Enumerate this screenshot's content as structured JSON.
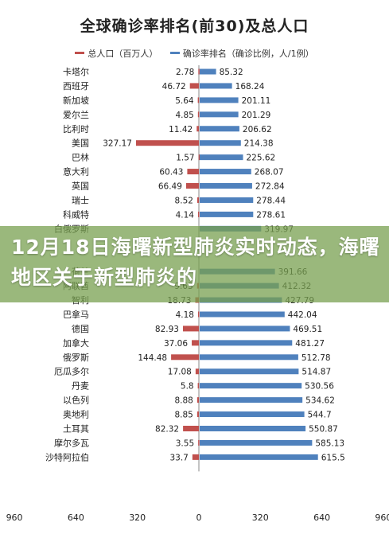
{
  "chart_data": {
    "type": "bar",
    "title": "全球确诊率排名(前30)及总人口",
    "categories": [
      "卡塔尔",
      "西班牙",
      "新加坡",
      "爱尔兰",
      "比利时",
      "美国",
      "巴林",
      "意大利",
      "英国",
      "瑞士",
      "科威特",
      "白俄罗斯",
      "",
      "",
      "荷兰",
      "阿联酋",
      "智利",
      "巴拿马",
      "德国",
      "加拿大",
      "俄罗斯",
      "厄瓜多尔",
      "丹麦",
      "以色列",
      "奥地利",
      "土耳其",
      "摩尔多瓦",
      "沙特阿拉伯"
    ],
    "series": [
      {
        "name": "总人口（百万人）",
        "direction": "left",
        "color": "#c0504d",
        "values": [
          2.78,
          46.72,
          5.64,
          4.85,
          11.42,
          327.17,
          1.57,
          60.43,
          66.49,
          8.52,
          4.14,
          null,
          null,
          null,
          null,
          9.63,
          18.73,
          4.18,
          82.93,
          37.06,
          144.48,
          17.08,
          5.8,
          8.88,
          8.85,
          82.32,
          3.55,
          33.7
        ]
      },
      {
        "name": "确诊率排名（确诊比例，人/1例）",
        "direction": "right",
        "color": "#4f81bd",
        "values": [
          85.32,
          168.24,
          201.11,
          201.29,
          206.62,
          214.38,
          225.62,
          268.07,
          272.84,
          278.44,
          278.61,
          319.97,
          null,
          null,
          391.66,
          412.32,
          427.79,
          442.04,
          469.51,
          481.27,
          512.78,
          514.87,
          530.56,
          534.62,
          544.7,
          550.87,
          585.13,
          615.5
        ]
      }
    ],
    "x_ticks": [
      "960",
      "640",
      "320",
      "0",
      "320",
      "640",
      "960"
    ],
    "xlim": [
      -960,
      960
    ]
  },
  "overlay": {
    "banner_text": "12月18日海曙新型肺炎实时动态，海曙地区关于新型肺炎的"
  }
}
